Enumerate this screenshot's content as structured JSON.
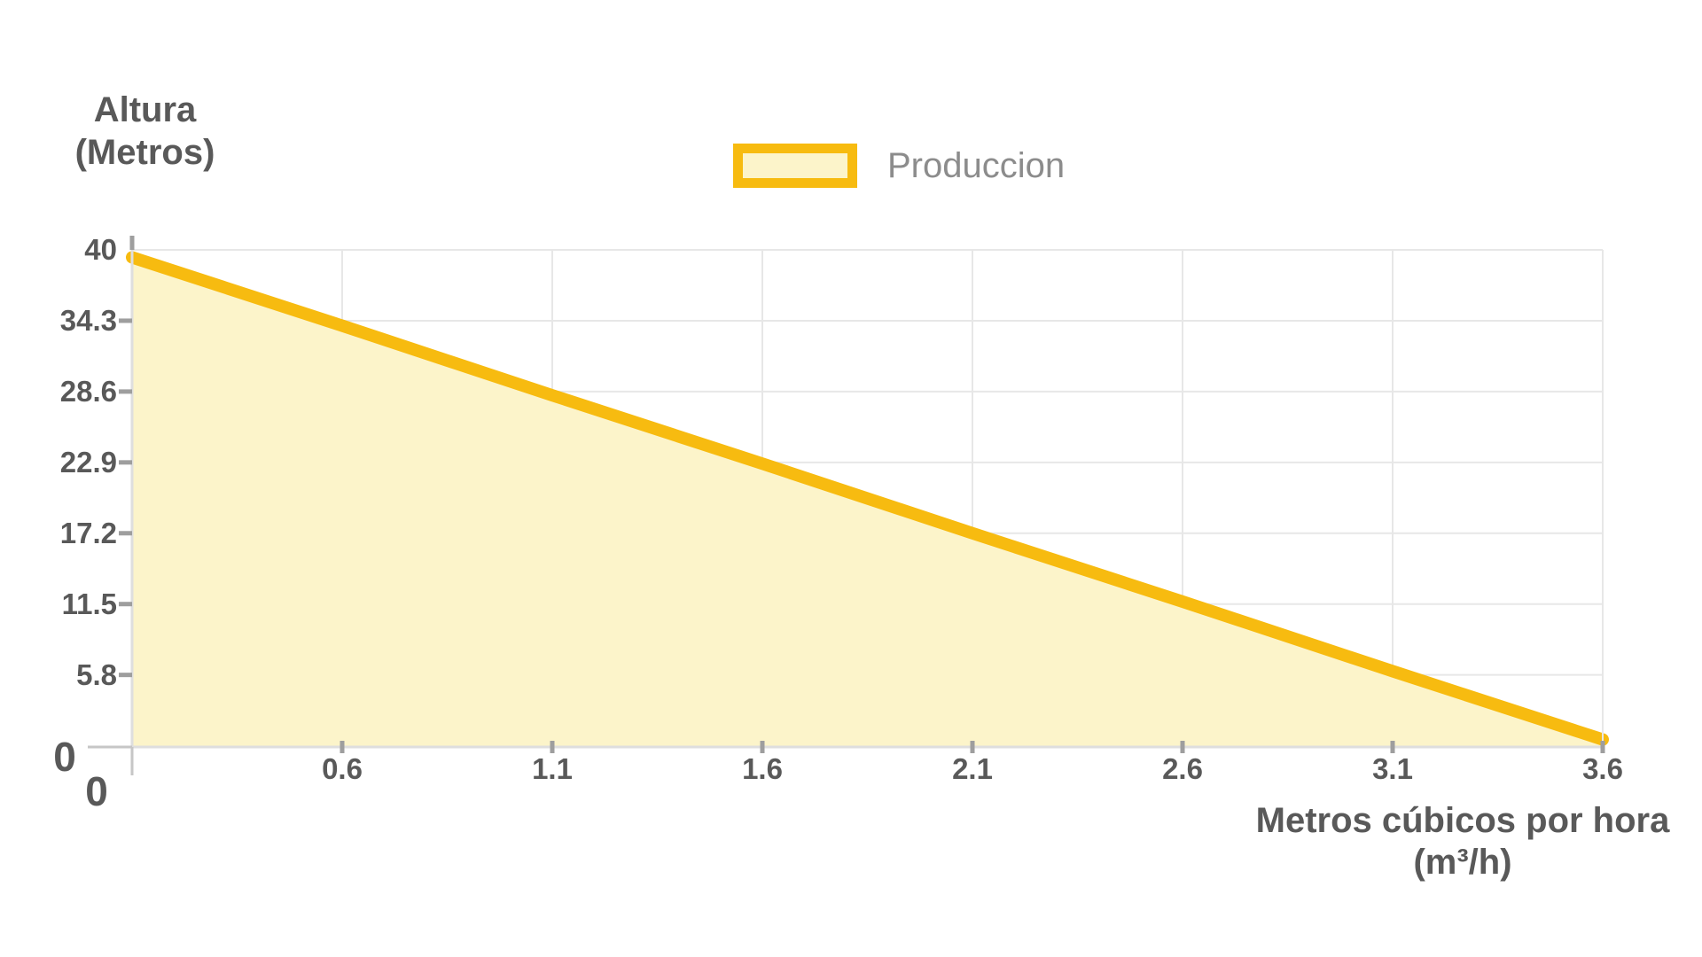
{
  "chart_data": {
    "type": "area",
    "series": [
      {
        "name": "Produccion",
        "x": [
          0.1,
          0.6,
          1.1,
          1.6,
          2.1,
          2.6,
          3.1,
          3.6
        ],
        "y": [
          39.4,
          33.9,
          28.3,
          22.8,
          17.2,
          11.7,
          6.1,
          0.6
        ]
      }
    ],
    "xlim": [
      0.1,
      3.6
    ],
    "ylim": [
      0,
      40
    ],
    "x_tick_values": [
      0.6,
      1.1,
      1.6,
      2.1,
      2.6,
      3.1,
      3.6
    ],
    "x_tick_labels": [
      "0.6",
      "1.1",
      "1.6",
      "2.1",
      "2.6",
      "3.1",
      "3.6"
    ],
    "y_tick_values": [
      5.8,
      11.5,
      17.2,
      22.9,
      28.6,
      34.3,
      40
    ],
    "y_tick_labels": [
      "5.8",
      "11.5",
      "17.2",
      "22.9",
      "28.6",
      "34.3",
      "40"
    ],
    "x_origin_label": "0",
    "y_origin_label": "0",
    "grid": true,
    "legend": {
      "label": "Produccion",
      "position": "top-center"
    },
    "y_axis_title": {
      "line1": "Altura",
      "line2": "(Metros)"
    },
    "x_axis_title": {
      "line1": "Metros cúbicos por hora",
      "line2": "(m³/h)"
    },
    "colors": {
      "line": "#F7BB10",
      "area_fill": "#FCF4CA",
      "legend_text": "#8C8C8C",
      "axis_text": "#595959",
      "grid_line": "#E7E7E7",
      "axis_line": "#DEDEDE",
      "tick_mark": "#9E9E9E",
      "axis_extension": "#C6C6C6"
    }
  }
}
